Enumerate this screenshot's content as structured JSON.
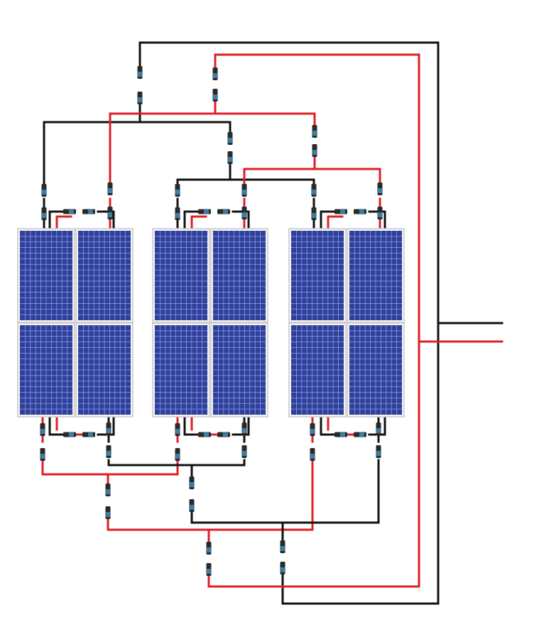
{
  "colors": {
    "positive_wire": "#dd1f26",
    "negative_wire": "#111111",
    "cell": "#2f3f9e",
    "cell_line": "#8fa0d8",
    "frame": "#c9c9c9",
    "connector_body": "#2a2a2a",
    "connector_accent": "#3a7ca8",
    "background": "#ffffff"
  },
  "diagram": {
    "arrays": 3,
    "modules_per_array": 4,
    "modules_per_column": 2,
    "icon": "solar-panel-icon"
  }
}
